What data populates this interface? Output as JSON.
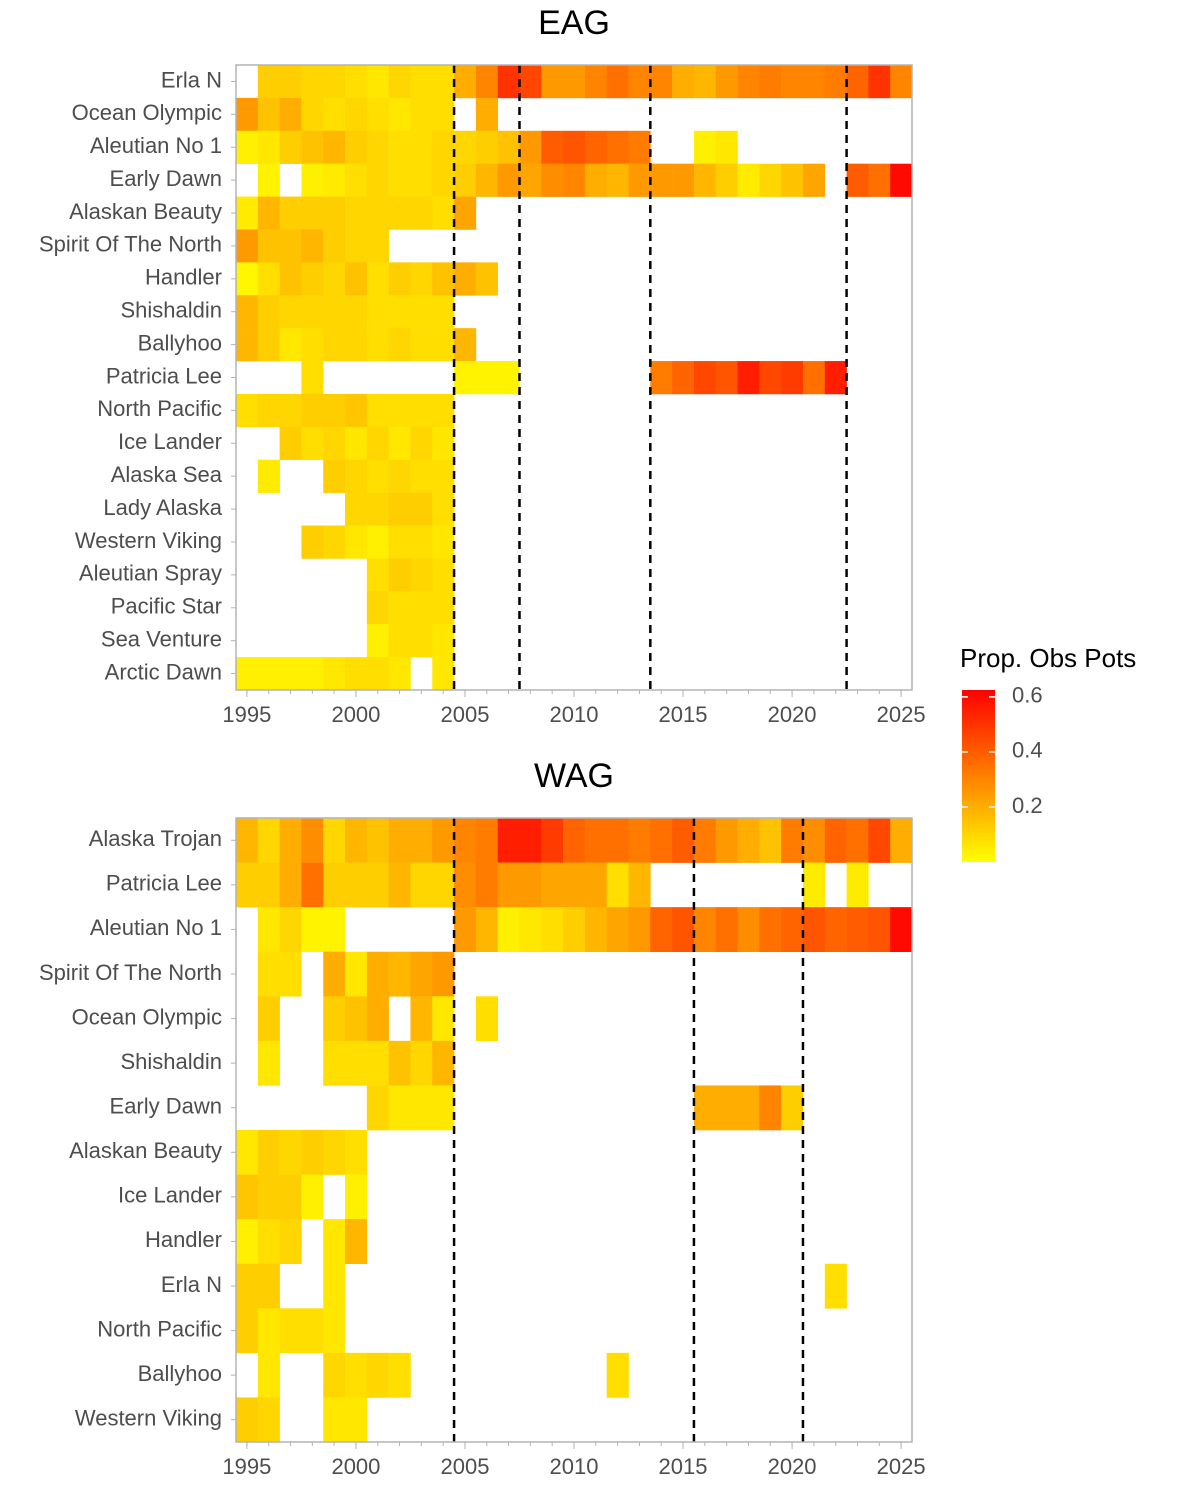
{
  "chart_data": [
    {
      "type": "heatmap",
      "title": "EAG",
      "categories": [
        "Erla N",
        "Ocean Olympic",
        "Aleutian No 1",
        "Early Dawn",
        "Alaskan Beauty",
        "Spirit Of The North",
        "Handler",
        "Shishaldin",
        "Ballyhoo",
        "Patricia Lee",
        "North Pacific",
        "Ice Lander",
        "Alaska Sea",
        "Lady Alaska",
        "Western Viking",
        "Aleutian Spray",
        "Pacific Star",
        "Sea Venture",
        "Arctic Dawn"
      ],
      "x": [
        1995,
        1996,
        1997,
        1998,
        1999,
        2000,
        2001,
        2002,
        2003,
        2004,
        2005,
        2006,
        2007,
        2008,
        2009,
        2010,
        2011,
        2012,
        2013,
        2014,
        2015,
        2016,
        2017,
        2018,
        2019,
        2020,
        2021,
        2022,
        2023,
        2024,
        2025
      ],
      "xlim": [
        1994.5,
        2025.5
      ],
      "xticks": [
        1995,
        2000,
        2005,
        2010,
        2015,
        2020,
        2025
      ],
      "vlines": [
        2004.5,
        2007.5,
        2013.5,
        2022.5
      ],
      "values": [
        [
          null,
          0.12,
          0.12,
          0.1,
          0.1,
          0.08,
          0.06,
          0.1,
          0.08,
          0.08,
          0.2,
          0.3,
          0.5,
          0.45,
          0.25,
          0.25,
          0.3,
          0.35,
          0.3,
          0.3,
          0.2,
          0.18,
          0.25,
          0.3,
          0.32,
          0.3,
          0.3,
          0.32,
          0.38,
          0.5,
          0.3
        ],
        [
          0.25,
          0.15,
          0.2,
          0.1,
          0.08,
          0.1,
          0.08,
          0.06,
          0.08,
          0.08,
          null,
          0.2,
          null,
          null,
          null,
          null,
          null,
          null,
          null,
          null,
          null,
          null,
          null,
          null,
          null,
          null,
          null,
          null,
          null,
          null,
          null
        ],
        [
          0.04,
          0.06,
          0.12,
          0.15,
          0.18,
          0.12,
          0.1,
          0.08,
          0.08,
          0.1,
          0.1,
          0.12,
          0.15,
          0.25,
          0.4,
          0.42,
          0.38,
          0.35,
          0.32,
          null,
          null,
          0.04,
          0.06,
          null,
          null,
          null,
          null,
          null,
          null,
          null,
          null
        ],
        [
          null,
          0.03,
          null,
          0.04,
          0.05,
          0.08,
          0.1,
          0.08,
          0.08,
          0.1,
          0.12,
          0.18,
          0.25,
          0.22,
          0.28,
          0.3,
          0.2,
          0.18,
          0.25,
          0.25,
          0.25,
          0.18,
          0.12,
          0.05,
          0.1,
          0.15,
          0.22,
          null,
          0.4,
          0.35,
          0.6
        ],
        [
          0.05,
          0.18,
          0.12,
          0.12,
          0.12,
          0.1,
          0.1,
          0.1,
          0.1,
          0.08,
          0.22,
          null,
          null,
          null,
          null,
          null,
          null,
          null,
          null,
          null,
          null,
          null,
          null,
          null,
          null,
          null,
          null,
          null,
          null,
          null,
          null
        ],
        [
          0.25,
          0.15,
          0.15,
          0.18,
          0.12,
          0.1,
          0.1,
          null,
          null,
          null,
          null,
          null,
          null,
          null,
          null,
          null,
          null,
          null,
          null,
          null,
          null,
          null,
          null,
          null,
          null,
          null,
          null,
          null,
          null,
          null,
          null
        ],
        [
          0.02,
          0.08,
          0.15,
          0.12,
          0.1,
          0.15,
          0.08,
          0.12,
          0.1,
          0.15,
          0.2,
          0.15,
          null,
          null,
          null,
          null,
          null,
          null,
          null,
          null,
          null,
          null,
          null,
          null,
          null,
          null,
          null,
          null,
          null,
          null,
          null
        ],
        [
          0.18,
          0.12,
          0.1,
          0.1,
          0.1,
          0.1,
          0.08,
          0.08,
          0.08,
          0.08,
          null,
          null,
          null,
          null,
          null,
          null,
          null,
          null,
          null,
          null,
          null,
          null,
          null,
          null,
          null,
          null,
          null,
          null,
          null,
          null,
          null
        ],
        [
          0.18,
          0.12,
          0.06,
          0.08,
          0.1,
          0.1,
          0.08,
          0.1,
          0.08,
          0.08,
          0.18,
          null,
          null,
          null,
          null,
          null,
          null,
          null,
          null,
          null,
          null,
          null,
          null,
          null,
          null,
          null,
          null,
          null,
          null,
          null,
          null
        ],
        [
          null,
          null,
          null,
          0.08,
          null,
          null,
          null,
          null,
          null,
          null,
          0.03,
          0.03,
          0.03,
          null,
          null,
          null,
          null,
          null,
          null,
          0.32,
          0.38,
          0.45,
          0.42,
          0.55,
          0.45,
          0.48,
          0.35,
          0.55,
          null,
          null,
          null
        ],
        [
          0.08,
          0.1,
          0.1,
          0.12,
          0.12,
          0.14,
          0.08,
          0.08,
          0.08,
          0.08,
          null,
          null,
          null,
          null,
          null,
          null,
          null,
          null,
          null,
          null,
          null,
          null,
          null,
          null,
          null,
          null,
          null,
          null,
          null,
          null,
          null
        ],
        [
          null,
          null,
          0.12,
          0.08,
          0.1,
          0.06,
          0.1,
          0.06,
          0.1,
          0.06,
          null,
          null,
          null,
          null,
          null,
          null,
          null,
          null,
          null,
          null,
          null,
          null,
          null,
          null,
          null,
          null,
          null,
          null,
          null,
          null,
          null
        ],
        [
          null,
          0.05,
          null,
          null,
          0.12,
          0.1,
          0.08,
          0.1,
          0.08,
          0.08,
          null,
          null,
          null,
          null,
          null,
          null,
          null,
          null,
          null,
          null,
          null,
          null,
          null,
          null,
          null,
          null,
          null,
          null,
          null,
          null,
          null
        ],
        [
          null,
          null,
          null,
          null,
          null,
          0.1,
          0.1,
          0.12,
          0.12,
          0.08,
          null,
          null,
          null,
          null,
          null,
          null,
          null,
          null,
          null,
          null,
          null,
          null,
          null,
          null,
          null,
          null,
          null,
          null,
          null,
          null,
          null
        ],
        [
          null,
          null,
          null,
          0.12,
          0.1,
          0.06,
          0.04,
          0.08,
          0.08,
          0.06,
          null,
          null,
          null,
          null,
          null,
          null,
          null,
          null,
          null,
          null,
          null,
          null,
          null,
          null,
          null,
          null,
          null,
          null,
          null,
          null,
          null
        ],
        [
          null,
          null,
          null,
          null,
          null,
          null,
          0.08,
          0.12,
          0.1,
          0.08,
          null,
          null,
          null,
          null,
          null,
          null,
          null,
          null,
          null,
          null,
          null,
          null,
          null,
          null,
          null,
          null,
          null,
          null,
          null,
          null,
          null
        ],
        [
          null,
          null,
          null,
          null,
          null,
          null,
          0.1,
          0.08,
          0.08,
          0.08,
          null,
          null,
          null,
          null,
          null,
          null,
          null,
          null,
          null,
          null,
          null,
          null,
          null,
          null,
          null,
          null,
          null,
          null,
          null,
          null,
          null
        ],
        [
          null,
          null,
          null,
          null,
          null,
          null,
          0.04,
          0.08,
          0.08,
          0.06,
          null,
          null,
          null,
          null,
          null,
          null,
          null,
          null,
          null,
          null,
          null,
          null,
          null,
          null,
          null,
          null,
          null,
          null,
          null,
          null,
          null
        ],
        [
          0.04,
          0.04,
          0.04,
          0.04,
          0.06,
          0.08,
          0.08,
          0.06,
          null,
          0.06,
          null,
          null,
          null,
          null,
          null,
          null,
          null,
          null,
          null,
          null,
          null,
          null,
          null,
          null,
          null,
          null,
          null,
          null,
          null,
          null,
          null
        ]
      ]
    },
    {
      "type": "heatmap",
      "title": "WAG",
      "categories": [
        "Alaska Trojan",
        "Patricia Lee",
        "Aleutian No 1",
        "Spirit Of The North",
        "Ocean Olympic",
        "Shishaldin",
        "Early Dawn",
        "Alaskan Beauty",
        "Ice Lander",
        "Handler",
        "Erla N",
        "North Pacific",
        "Ballyhoo",
        "Western Viking"
      ],
      "x": [
        1995,
        1996,
        1997,
        1998,
        1999,
        2000,
        2001,
        2002,
        2003,
        2004,
        2005,
        2006,
        2007,
        2008,
        2009,
        2010,
        2011,
        2012,
        2013,
        2014,
        2015,
        2016,
        2017,
        2018,
        2019,
        2020,
        2021,
        2022,
        2023,
        2024,
        2025
      ],
      "xlim": [
        1994.5,
        2025.5
      ],
      "xticks": [
        1995,
        2000,
        2005,
        2010,
        2015,
        2020,
        2025
      ],
      "vlines": [
        2004.5,
        2015.5,
        2020.5
      ],
      "values": [
        [
          0.18,
          0.1,
          0.2,
          0.28,
          0.1,
          0.18,
          0.15,
          0.2,
          0.2,
          0.25,
          0.3,
          0.32,
          0.55,
          0.55,
          0.48,
          0.38,
          0.35,
          0.35,
          0.32,
          0.35,
          0.4,
          0.32,
          0.25,
          0.2,
          0.15,
          0.32,
          0.28,
          0.38,
          0.35,
          0.45,
          0.2
        ],
        [
          0.12,
          0.12,
          0.2,
          0.35,
          0.12,
          0.12,
          0.12,
          0.18,
          0.1,
          0.1,
          0.28,
          0.32,
          0.25,
          0.25,
          0.22,
          0.22,
          0.22,
          0.08,
          0.18,
          null,
          null,
          null,
          null,
          null,
          null,
          null,
          0.05,
          null,
          0.05,
          null,
          null
        ],
        [
          null,
          0.06,
          0.1,
          0.03,
          0.03,
          null,
          null,
          null,
          null,
          null,
          0.25,
          0.18,
          0.04,
          0.06,
          0.08,
          0.12,
          0.18,
          0.22,
          0.25,
          0.38,
          0.42,
          0.3,
          0.35,
          0.28,
          0.35,
          0.38,
          0.42,
          0.38,
          0.4,
          0.42,
          0.6
        ],
        [
          null,
          0.08,
          0.08,
          null,
          0.2,
          0.06,
          0.2,
          0.18,
          0.22,
          0.25,
          null,
          null,
          null,
          null,
          null,
          null,
          null,
          null,
          null,
          null,
          null,
          null,
          null,
          null,
          null,
          null,
          null,
          null,
          null,
          null,
          null
        ],
        [
          null,
          0.12,
          null,
          null,
          0.12,
          0.15,
          0.2,
          null,
          0.18,
          0.06,
          null,
          0.08,
          null,
          null,
          null,
          null,
          null,
          null,
          null,
          null,
          null,
          null,
          null,
          null,
          null,
          null,
          null,
          null,
          null,
          null,
          null
        ],
        [
          null,
          0.06,
          null,
          null,
          0.08,
          0.08,
          0.08,
          0.15,
          0.1,
          0.18,
          null,
          null,
          null,
          null,
          null,
          null,
          null,
          null,
          null,
          null,
          null,
          null,
          null,
          null,
          null,
          null,
          null,
          null,
          null,
          null,
          null
        ],
        [
          null,
          null,
          null,
          null,
          null,
          null,
          0.1,
          0.06,
          0.06,
          0.06,
          null,
          null,
          null,
          null,
          null,
          null,
          null,
          null,
          null,
          null,
          null,
          0.2,
          0.2,
          0.2,
          0.3,
          0.12,
          null,
          null,
          null,
          null,
          null
        ],
        [
          0.06,
          0.12,
          0.1,
          0.12,
          0.1,
          0.08,
          null,
          null,
          null,
          null,
          null,
          null,
          null,
          null,
          null,
          null,
          null,
          null,
          null,
          null,
          null,
          null,
          null,
          null,
          null,
          null,
          null,
          null,
          null,
          null,
          null
        ],
        [
          0.14,
          0.12,
          0.12,
          0.04,
          null,
          0.04,
          null,
          null,
          null,
          null,
          null,
          null,
          null,
          null,
          null,
          null,
          null,
          null,
          null,
          null,
          null,
          null,
          null,
          null,
          null,
          null,
          null,
          null,
          null,
          null,
          null
        ],
        [
          0.04,
          0.08,
          0.1,
          null,
          0.06,
          0.18,
          null,
          null,
          null,
          null,
          null,
          null,
          null,
          null,
          null,
          null,
          null,
          null,
          null,
          null,
          null,
          null,
          null,
          null,
          null,
          null,
          null,
          null,
          null,
          null,
          null
        ],
        [
          0.12,
          0.12,
          null,
          null,
          0.06,
          null,
          null,
          null,
          null,
          null,
          null,
          null,
          null,
          null,
          null,
          null,
          null,
          null,
          null,
          null,
          null,
          null,
          null,
          null,
          null,
          null,
          null,
          0.08,
          null,
          null,
          null
        ],
        [
          0.12,
          0.06,
          0.08,
          0.08,
          0.06,
          null,
          null,
          null,
          null,
          null,
          null,
          null,
          null,
          null,
          null,
          null,
          null,
          null,
          null,
          null,
          null,
          null,
          null,
          null,
          null,
          null,
          null,
          null,
          null,
          null,
          null
        ],
        [
          null,
          0.06,
          null,
          null,
          0.1,
          0.08,
          0.1,
          0.08,
          null,
          null,
          null,
          null,
          null,
          null,
          null,
          null,
          null,
          0.08,
          null,
          null,
          null,
          null,
          null,
          null,
          null,
          null,
          null,
          null,
          null,
          null,
          null
        ],
        [
          0.12,
          0.1,
          null,
          null,
          0.06,
          0.06,
          null,
          null,
          null,
          null,
          null,
          null,
          null,
          null,
          null,
          null,
          null,
          null,
          null,
          null,
          null,
          null,
          null,
          null,
          null,
          null,
          null,
          null,
          null,
          null,
          null
        ]
      ]
    }
  ],
  "colorbar": {
    "title": "Prop. Obs Pots",
    "lim": [
      0,
      0.625
    ],
    "ticks": [
      0.2,
      0.4,
      0.6
    ],
    "colors": [
      "#ffff00",
      "#ff0000"
    ]
  }
}
